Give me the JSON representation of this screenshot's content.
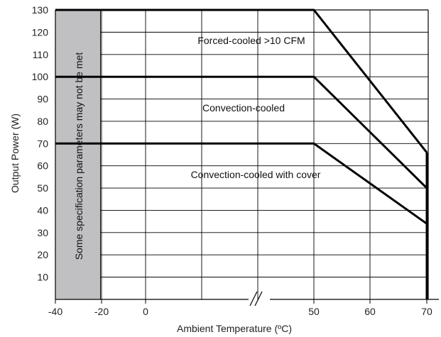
{
  "chart_data": {
    "type": "line",
    "xlabel": "Ambient Temperature (ºC)",
    "ylabel": "Output Power (W)",
    "ylim": [
      0,
      130
    ],
    "y_ticks": [
      "10",
      "20",
      "30",
      "40",
      "50",
      "60",
      "70",
      "80",
      "90",
      "100",
      "110",
      "120",
      "130"
    ],
    "x_ticks": [
      "-40",
      "-20",
      "0",
      "50",
      "60",
      "70"
    ],
    "axis_break": "between 0 and 50",
    "shaded_region": {
      "x_from": -40,
      "x_to": -20,
      "label": "Some specification parameters may not be met",
      "color": "#c0c0c2"
    },
    "series": [
      {
        "name": "Forced-cooled >10 CFM",
        "points": [
          [
            -40,
            130
          ],
          [
            50,
            130
          ],
          [
            70,
            66
          ]
        ]
      },
      {
        "name": "Convection-cooled",
        "points": [
          [
            -40,
            100
          ],
          [
            50,
            100
          ],
          [
            70,
            50
          ]
        ]
      },
      {
        "name": "Convection-cooled with cover",
        "points": [
          [
            -40,
            70
          ],
          [
            50,
            70
          ],
          [
            70,
            34
          ]
        ]
      }
    ],
    "cutoff": {
      "x": 70,
      "from_y": 0,
      "to_y": 66
    }
  }
}
